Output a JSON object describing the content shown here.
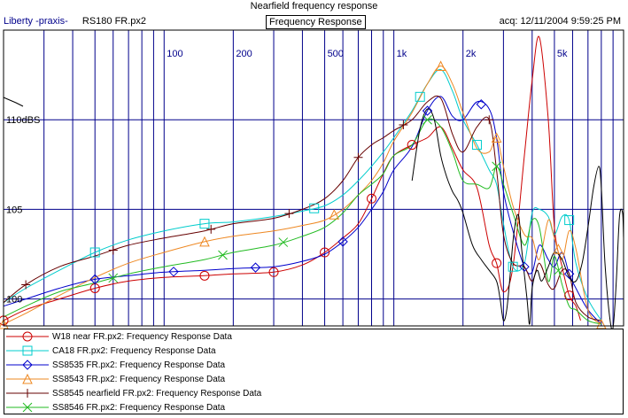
{
  "header": {
    "title": "Nearfield frequency response",
    "left_title": "Liberty -praxis-",
    "file_name": "RS180 FR.px2",
    "tab_label": "Frequency Response",
    "acq_label": "acq: 12/11/2004 9:59:25 PM"
  },
  "colors": {
    "grid": "#00008b",
    "background": "#ffffff",
    "frame": "#000000"
  },
  "chart_data": {
    "type": "line",
    "title": "Nearfield frequency response",
    "xlabel": "",
    "ylabel": "",
    "xscale": "log",
    "xlim": [
      20,
      10000
    ],
    "ylim": [
      98.5,
      115
    ],
    "x_ticks": [
      "100",
      "200",
      "500",
      "1k",
      "2k",
      "5k"
    ],
    "x_tick_values": [
      100,
      200,
      500,
      1000,
      2000,
      5000
    ],
    "y_ticks": [
      "110dBS",
      "105",
      "100"
    ],
    "y_tick_values": [
      110,
      105,
      100
    ],
    "grid": true,
    "legend_position": "bottom",
    "series": [
      {
        "name": "W18 near FR.px2:  Frequency Response Data",
        "color": "#cc0000",
        "marker": "circle",
        "points": [
          [
            20,
            98.8
          ],
          [
            25,
            99.4
          ],
          [
            35,
            100.0
          ],
          [
            50,
            100.6
          ],
          [
            70,
            101.0
          ],
          [
            100,
            101.2
          ],
          [
            150,
            101.3
          ],
          [
            200,
            101.4
          ],
          [
            300,
            101.5
          ],
          [
            400,
            101.9
          ],
          [
            500,
            102.6
          ],
          [
            600,
            103.4
          ],
          [
            700,
            104.2
          ],
          [
            800,
            105.6
          ],
          [
            900,
            107.0
          ],
          [
            1000,
            108.0
          ],
          [
            1200,
            108.6
          ],
          [
            1400,
            109.0
          ],
          [
            1600,
            109.6
          ],
          [
            1800,
            108.4
          ],
          [
            2000,
            107.2
          ],
          [
            2300,
            106.2
          ],
          [
            2600,
            103.0
          ],
          [
            2800,
            102.0
          ],
          [
            3000,
            100.4
          ],
          [
            3300,
            101.8
          ],
          [
            3700,
            108.0
          ],
          [
            4000,
            112.2
          ],
          [
            4300,
            114.6
          ],
          [
            4700,
            110.0
          ],
          [
            5000,
            104.0
          ],
          [
            5400,
            101.8
          ],
          [
            5800,
            100.2
          ],
          [
            6200,
            99.6
          ],
          [
            6500,
            98.8
          ]
        ],
        "marker_x": [
          20,
          50,
          150,
          300,
          500,
          800,
          1200,
          2800,
          5800
        ]
      },
      {
        "name": "CA18 FR.px2:  Frequency Response Data",
        "color": "#00cccc",
        "marker": "square",
        "points": [
          [
            20,
            99.8
          ],
          [
            25,
            100.6
          ],
          [
            35,
            101.6
          ],
          [
            50,
            102.6
          ],
          [
            70,
            103.3
          ],
          [
            100,
            103.8
          ],
          [
            150,
            104.2
          ],
          [
            200,
            104.3
          ],
          [
            300,
            104.6
          ],
          [
            400,
            104.9
          ],
          [
            500,
            105.2
          ],
          [
            600,
            105.8
          ],
          [
            700,
            106.6
          ],
          [
            800,
            107.4
          ],
          [
            900,
            108.2
          ],
          [
            1000,
            109.0
          ],
          [
            1200,
            110.5
          ],
          [
            1400,
            112.0
          ],
          [
            1600,
            112.8
          ],
          [
            1800,
            111.6
          ],
          [
            2000,
            110.0
          ],
          [
            2300,
            108.6
          ],
          [
            2600,
            107.2
          ],
          [
            2800,
            106.4
          ],
          [
            3000,
            104.2
          ],
          [
            3300,
            101.8
          ],
          [
            3700,
            102.0
          ],
          [
            4000,
            104.8
          ],
          [
            4300,
            105.0
          ],
          [
            4700,
            104.6
          ],
          [
            5000,
            103.6
          ],
          [
            5400,
            104.6
          ],
          [
            5800,
            104.4
          ],
          [
            6200,
            102.0
          ],
          [
            7000,
            100.0
          ],
          [
            8000,
            98.8
          ]
        ],
        "marker_x": [
          50,
          150,
          450,
          1300,
          2300,
          3300,
          5800
        ]
      },
      {
        "name": "SS8535 FR.px2:  Frequency Response Data",
        "color": "#0000cc",
        "marker": "diamond",
        "points": [
          [
            20,
            99.6
          ],
          [
            25,
            100.0
          ],
          [
            35,
            100.6
          ],
          [
            50,
            101.1
          ],
          [
            70,
            101.3
          ],
          [
            100,
            101.5
          ],
          [
            150,
            101.6
          ],
          [
            200,
            101.7
          ],
          [
            300,
            101.8
          ],
          [
            400,
            102.1
          ],
          [
            500,
            102.5
          ],
          [
            600,
            103.2
          ],
          [
            700,
            104.0
          ],
          [
            800,
            105.0
          ],
          [
            900,
            106.0
          ],
          [
            1000,
            107.2
          ],
          [
            1200,
            108.5
          ],
          [
            1400,
            110.5
          ],
          [
            1600,
            111.3
          ],
          [
            1800,
            110.2
          ],
          [
            2000,
            110.0
          ],
          [
            2300,
            111.0
          ],
          [
            2600,
            110.6
          ],
          [
            2800,
            109.0
          ],
          [
            3000,
            106.0
          ],
          [
            3300,
            103.8
          ],
          [
            3700,
            101.8
          ],
          [
            4000,
            101.5
          ],
          [
            4300,
            103.0
          ],
          [
            4700,
            102.2
          ],
          [
            5000,
            101.8
          ],
          [
            5400,
            102.6
          ],
          [
            5800,
            101.4
          ],
          [
            6200,
            100.6
          ],
          [
            7000,
            99.4
          ],
          [
            8000,
            98.6
          ]
        ],
        "marker_x": [
          50,
          110,
          250,
          600,
          1400,
          2400,
          3700,
          5800
        ]
      },
      {
        "name": "SS8543 FR.px2:  Frequency Response Data",
        "color": "#ee8822",
        "marker": "triangle",
        "points": [
          [
            20,
            98.6
          ],
          [
            25,
            99.2
          ],
          [
            35,
            100.2
          ],
          [
            50,
            101.2
          ],
          [
            70,
            102.0
          ],
          [
            100,
            102.6
          ],
          [
            150,
            103.2
          ],
          [
            200,
            103.5
          ],
          [
            300,
            103.8
          ],
          [
            400,
            104.1
          ],
          [
            500,
            104.4
          ],
          [
            600,
            105.0
          ],
          [
            700,
            105.8
          ],
          [
            800,
            106.6
          ],
          [
            900,
            107.6
          ],
          [
            1000,
            108.8
          ],
          [
            1200,
            110.4
          ],
          [
            1400,
            112.0
          ],
          [
            1600,
            113.0
          ],
          [
            1800,
            112.0
          ],
          [
            2000,
            110.4
          ],
          [
            2300,
            108.4
          ],
          [
            2600,
            108.2
          ],
          [
            2800,
            109.0
          ],
          [
            3000,
            107.4
          ],
          [
            3300,
            105.2
          ],
          [
            3700,
            103.6
          ],
          [
            4000,
            103.4
          ],
          [
            4300,
            102.2
          ],
          [
            4700,
            104.4
          ],
          [
            5000,
            103.4
          ],
          [
            5400,
            102.2
          ],
          [
            5800,
            103.8
          ],
          [
            6200,
            102.8
          ],
          [
            7000,
            99.4
          ],
          [
            8000,
            98.6
          ]
        ],
        "marker_x": [
          20,
          150,
          550,
          1600,
          2800,
          5200,
          8000
        ]
      },
      {
        "name": "SS8545 nearfield FR.px2:  Frequency Response Data",
        "color": "#660000",
        "marker": "plus",
        "points": [
          [
            20,
            99.8
          ],
          [
            25,
            100.8
          ],
          [
            35,
            101.8
          ],
          [
            50,
            102.4
          ],
          [
            70,
            103.0
          ],
          [
            100,
            103.4
          ],
          [
            150,
            103.8
          ],
          [
            200,
            104.2
          ],
          [
            300,
            104.5
          ],
          [
            400,
            105.0
          ],
          [
            500,
            105.6
          ],
          [
            600,
            106.6
          ],
          [
            700,
            107.9
          ],
          [
            800,
            108.6
          ],
          [
            900,
            109.0
          ],
          [
            1000,
            109.4
          ],
          [
            1200,
            110.0
          ],
          [
            1400,
            111.0
          ],
          [
            1600,
            111.2
          ],
          [
            1800,
            109.2
          ],
          [
            2000,
            108.2
          ],
          [
            2300,
            109.6
          ],
          [
            2600,
            110.0
          ],
          [
            2800,
            107.2
          ],
          [
            3000,
            103.6
          ],
          [
            3300,
            102.0
          ],
          [
            3700,
            101.8
          ],
          [
            4000,
            101.0
          ],
          [
            4300,
            102.0
          ],
          [
            4700,
            100.8
          ],
          [
            5000,
            100.6
          ],
          [
            5400,
            101.6
          ],
          [
            5800,
            101.4
          ],
          [
            6200,
            99.8
          ],
          [
            7000,
            99.0
          ],
          [
            8000,
            98.8
          ]
        ],
        "marker_x": [
          25,
          60,
          160,
          350,
          700,
          1100,
          2600
        ]
      },
      {
        "name": "SS8546 FR.px2:  Frequency Response Data",
        "color": "#22bb22",
        "marker": "x",
        "points": [
          [
            20,
            99.0
          ],
          [
            25,
            99.6
          ],
          [
            35,
            100.4
          ],
          [
            50,
            100.9
          ],
          [
            70,
            101.4
          ],
          [
            100,
            101.8
          ],
          [
            150,
            102.2
          ],
          [
            200,
            102.6
          ],
          [
            300,
            103.0
          ],
          [
            400,
            103.5
          ],
          [
            500,
            104.0
          ],
          [
            600,
            104.8
          ],
          [
            700,
            105.8
          ],
          [
            800,
            106.4
          ],
          [
            900,
            107.0
          ],
          [
            1000,
            108.0
          ],
          [
            1200,
            108.6
          ],
          [
            1400,
            110.0
          ],
          [
            1600,
            109.6
          ],
          [
            1800,
            108.2
          ],
          [
            2000,
            106.6
          ],
          [
            2300,
            106.4
          ],
          [
            2600,
            106.2
          ],
          [
            2800,
            107.4
          ],
          [
            3000,
            106.4
          ],
          [
            3300,
            104.8
          ],
          [
            3700,
            103.0
          ],
          [
            4000,
            104.4
          ],
          [
            4300,
            104.0
          ],
          [
            4700,
            101.0
          ],
          [
            5000,
            102.4
          ],
          [
            5400,
            100.8
          ],
          [
            5800,
            99.6
          ],
          [
            6200,
            99.4
          ],
          [
            7000,
            98.8
          ],
          [
            8000,
            98.6
          ]
        ],
        "marker_x": [
          60,
          180,
          330,
          1400,
          2800,
          5200
        ]
      },
      {
        "name": "",
        "color": "#000000",
        "marker": "none",
        "points": [
          [
            1200,
            106.6
          ],
          [
            1300,
            109.5
          ],
          [
            1400,
            110.6
          ],
          [
            1500,
            110.0
          ],
          [
            1600,
            108.0
          ],
          [
            1700,
            106.8
          ],
          [
            1800,
            106.0
          ],
          [
            1900,
            105.5
          ],
          [
            2000,
            104.8
          ],
          [
            2200,
            103.0
          ],
          [
            2400,
            102.2
          ],
          [
            2600,
            101.6
          ],
          [
            2800,
            101.0
          ],
          [
            2900,
            100.0
          ],
          [
            3000,
            98.8
          ],
          [
            3100,
            99.4
          ],
          [
            3200,
            101.2
          ],
          [
            3300,
            103.2
          ],
          [
            3400,
            104.4
          ],
          [
            3500,
            104.6
          ],
          [
            3600,
            102.8
          ],
          [
            3800,
            100.0
          ],
          [
            3900,
            98.6
          ],
          [
            4000,
            100.6
          ],
          [
            4200,
            101.6
          ],
          [
            4400,
            101.0
          ],
          [
            4700,
            101.8
          ],
          [
            5000,
            102.6
          ],
          [
            5400,
            102.2
          ],
          [
            5800,
            101.2
          ],
          [
            6200,
            101.0
          ],
          [
            6600,
            102.0
          ],
          [
            7000,
            104.0
          ],
          [
            7400,
            106.2
          ],
          [
            7800,
            107.4
          ],
          [
            8000,
            106.2
          ],
          [
            8300,
            102.0
          ],
          [
            8700,
            99.0
          ],
          [
            9000,
            98.4
          ],
          [
            9300,
            101.0
          ],
          [
            9600,
            104.6
          ],
          [
            9900,
            104.8
          ],
          [
            10000,
            103.4
          ]
        ],
        "marker_x": []
      }
    ]
  }
}
